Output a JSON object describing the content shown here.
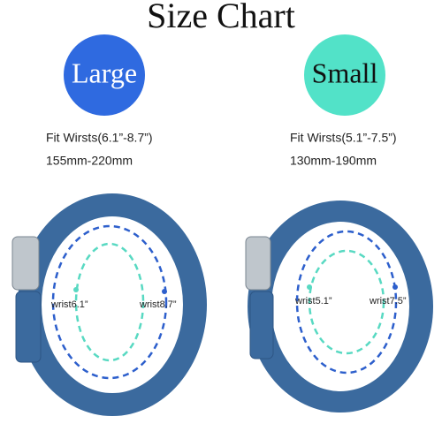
{
  "title": "Size Chart",
  "sizes": [
    {
      "name": "Large",
      "fit": "Fit Wirsts(6.1”-8.7”)",
      "mm": "155mm-220mm",
      "inner_label": "wrist6.1”",
      "outer_label": "wrist8.7”"
    },
    {
      "name": "Small",
      "fit": "Fit Wirsts(5.1”-7.5”)",
      "mm": "130mm-190mm",
      "inner_label": "wrist5.1”",
      "outer_label": "wrist7.5”"
    }
  ]
}
